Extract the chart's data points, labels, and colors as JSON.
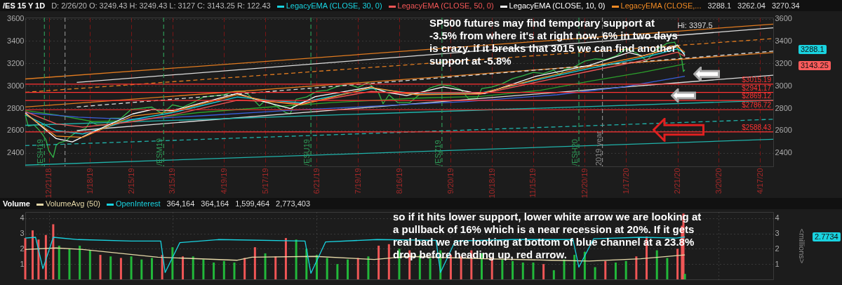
{
  "chart_data": [
    {
      "type": "line",
      "title": "/ES 15 Y 1D",
      "subtitle": "D: 2/26/20  O: 3249.43  H: 3249.43  L: 3127  C: 3143.25  R: 122.43",
      "legend": "top",
      "grid": true,
      "xlim": [
        "2018-12-05",
        "2020-04-26"
      ],
      "xticks": [
        {
          "value": "2018-12-21",
          "label": "12/21/18"
        },
        {
          "value": "2019-01-18",
          "label": "1/18/19"
        },
        {
          "value": "2019-02-15",
          "label": "2/15/19"
        },
        {
          "value": "2019-03-15",
          "label": "3/15/19"
        },
        {
          "value": "2019-04-19",
          "label": "4/19/19"
        },
        {
          "value": "2019-05-17",
          "label": "5/17/19"
        },
        {
          "value": "2019-06-21",
          "label": "6/21/19"
        },
        {
          "value": "2019-07-19",
          "label": "7/19/19"
        },
        {
          "value": "2019-08-16",
          "label": "8/16/19"
        },
        {
          "value": "2019-09-20",
          "label": "9/20/19"
        },
        {
          "value": "2019-10-18",
          "label": "10/18/19"
        },
        {
          "value": "2019-11-15",
          "label": "11/15/19"
        },
        {
          "value": "2019-12-20",
          "label": "12/20/19"
        },
        {
          "value": "2020-01-17",
          "label": "1/17/20"
        },
        {
          "value": "2020-02-21",
          "label": "2/21/20"
        },
        {
          "value": "2020-03-20",
          "label": "3/20/20"
        },
        {
          "value": "2020-04-17",
          "label": "4/17/20"
        }
      ],
      "ylim": [
        2280,
        3610
      ],
      "yticks": [
        2400,
        2600,
        2800,
        3000,
        3200,
        3400,
        3600
      ],
      "y2lim": [
        2280,
        3610
      ],
      "y2ticks": [
        2400,
        2600,
        2800,
        3000,
        3200,
        3400,
        3600
      ],
      "series": [
        {
          "color": "#33b84a",
          "x": [
            "2018-12-05",
            "2018-12-07",
            "2018-12-11",
            "2018-12-14",
            "2018-12-17",
            "2018-12-19",
            "2018-12-21",
            "2018-12-24",
            "2018-12-26",
            "2018-12-28",
            "2019-01-02",
            "2019-01-04",
            "2019-01-08",
            "2019-01-11",
            "2019-01-15",
            "2019-01-18",
            "2019-01-23",
            "2019-01-29",
            "2019-02-01",
            "2019-02-08",
            "2019-02-15",
            "2019-02-22",
            "2019-03-01",
            "2019-03-08",
            "2019-03-15",
            "2019-03-22",
            "2019-03-29",
            "2019-04-05",
            "2019-04-12",
            "2019-04-19",
            "2019-04-26",
            "2019-05-03",
            "2019-05-08",
            "2019-05-13",
            "2019-05-17",
            "2019-05-23",
            "2019-05-31",
            "2019-06-03",
            "2019-06-07",
            "2019-06-14",
            "2019-06-21",
            "2019-06-28",
            "2019-07-05",
            "2019-07-12",
            "2019-07-19",
            "2019-07-26",
            "2019-08-02",
            "2019-08-05",
            "2019-08-09",
            "2019-08-15",
            "2019-08-23",
            "2019-08-30",
            "2019-09-06",
            "2019-09-13",
            "2019-09-20",
            "2019-09-27",
            "2019-10-02",
            "2019-10-08",
            "2019-10-11",
            "2019-10-18",
            "2019-10-25",
            "2019-11-01",
            "2019-11-08",
            "2019-11-15",
            "2019-11-22",
            "2019-11-29",
            "2019-12-03",
            "2019-12-06",
            "2019-12-13",
            "2019-12-20",
            "2019-12-27",
            "2020-01-03",
            "2020-01-10",
            "2020-01-17",
            "2020-01-24",
            "2020-01-31",
            "2020-02-07",
            "2020-02-14",
            "2020-02-19",
            "2020-02-21",
            "2020-02-24",
            "2020-02-25",
            "2020-02-26"
          ],
          "values": [
            2740,
            2640,
            2650,
            2610,
            2560,
            2520,
            2420,
            2360,
            2470,
            2490,
            2510,
            2540,
            2580,
            2600,
            2620,
            2680,
            2650,
            2650,
            2710,
            2710,
            2790,
            2800,
            2810,
            2750,
            2830,
            2810,
            2850,
            2900,
            2910,
            2920,
            2950,
            2950,
            2890,
            2820,
            2870,
            2830,
            2760,
            2750,
            2880,
            2900,
            2950,
            2960,
            2995,
            3015,
            2985,
            3030,
            2935,
            2840,
            2920,
            2850,
            2850,
            2925,
            2980,
            3010,
            3000,
            2965,
            2885,
            2890,
            2975,
            2990,
            3020,
            3065,
            3090,
            3120,
            3110,
            3140,
            3095,
            3145,
            3170,
            3220,
            3240,
            3235,
            3265,
            3330,
            3295,
            3225,
            3325,
            3380,
            3390,
            3335,
            3225,
            3128,
            3143.25
          ]
        },
        {
          "color": "#e07b20",
          "x": [
            "2018-12-05",
            "2020-04-26"
          ],
          "values": [
            3061,
            3551
          ]
        },
        {
          "color": "#dddddd",
          "x": [
            "2019-01-09",
            "2020-04-26"
          ],
          "values": [
            3030,
            3518
          ]
        },
        {
          "color": "#e07b20",
          "line_style": "dashed",
          "x": [
            "2018-12-05",
            "2020-04-26"
          ],
          "values": [
            2942,
            3422
          ]
        },
        {
          "color": "#e07b20",
          "x": [
            "2018-12-05",
            "2020-04-26"
          ],
          "values": [
            2811,
            3297
          ]
        },
        {
          "color": "#dddddd",
          "line_style": "dashed",
          "x": [
            "2019-01-09",
            "2020-04-26"
          ],
          "values": [
            2811,
            3310
          ]
        },
        {
          "color": "#dddddd",
          "x": [
            "2019-01-09",
            "2020-04-26"
          ],
          "values": [
            2600,
            3095
          ]
        },
        {
          "color": "#20b2aa",
          "x": [
            "2018-12-05",
            "2020-04-26"
          ],
          "values": [
            2647,
            2870
          ]
        },
        {
          "color": "#20b2aa",
          "line_style": "dashed",
          "x": [
            "2018-12-05",
            "2020-04-26"
          ],
          "values": [
            2466,
            2701
          ]
        },
        {
          "color": "#20b2aa",
          "x": [
            "2018-12-05",
            "2020-04-26"
          ],
          "values": [
            2291,
            2522
          ]
        },
        {
          "color": "#2ca02c",
          "x": [
            "2018-12-05",
            "2018-12-26",
            "2019-01-20",
            "2019-02-16",
            "2019-04-01",
            "2019-05-20",
            "2019-07-01",
            "2019-08-28",
            "2019-10-10",
            "2019-11-20",
            "2019-12-23",
            "2020-01-28",
            "2020-02-26"
          ],
          "values": [
            2780,
            2740,
            2680,
            2690,
            2760,
            2810,
            2850,
            2890,
            2905,
            2960,
            3040,
            3120,
            3195
          ]
        },
        {
          "color": "#3a5fd9",
          "x": [
            "2018-12-05",
            "2019-01-10",
            "2019-02-16",
            "2019-04-01",
            "2019-06-01",
            "2019-08-01",
            "2019-10-01",
            "2019-12-01",
            "2020-01-15",
            "2020-02-26"
          ],
          "values": [
            2760,
            2720,
            2700,
            2730,
            2780,
            2820,
            2860,
            2920,
            2990,
            3085
          ]
        },
        {
          "name": "LegacyEMA (CLOSE, 30, 0)",
          "color": "#19d3e0",
          "x": [
            "2018-12-05",
            "2018-12-26",
            "2019-01-13",
            "2019-02-16",
            "2019-03-15",
            "2019-04-28",
            "2019-05-20",
            "2019-06-10",
            "2019-07-28",
            "2019-08-28",
            "2019-10-10",
            "2019-11-20",
            "2019-12-23",
            "2020-01-28",
            "2020-02-21",
            "2020-02-26"
          ],
          "values": [
            2740,
            2600,
            2570,
            2700,
            2760,
            2900,
            2870,
            2850,
            2975,
            2930,
            2935,
            3060,
            3155,
            3250,
            3330,
            3288.1
          ]
        },
        {
          "name": "LegacyEMA (CLOSE, 50, 0)",
          "color": "#f05656",
          "x": [
            "2018-12-05",
            "2018-12-26",
            "2019-01-13",
            "2019-02-16",
            "2019-03-15",
            "2019-04-28",
            "2019-05-20",
            "2019-06-10",
            "2019-07-28",
            "2019-08-28",
            "2019-10-10",
            "2019-11-20",
            "2019-12-23",
            "2020-01-28",
            "2020-02-21",
            "2020-02-26"
          ],
          "values": [
            2770,
            2660,
            2630,
            2680,
            2740,
            2870,
            2860,
            2840,
            2950,
            2925,
            2925,
            3040,
            3130,
            3225,
            3300,
            3262.04
          ]
        },
        {
          "name": "LegacyEMA (CLOSE, 10, 0)",
          "color": "#ffffff",
          "x": [
            "2018-12-05",
            "2018-12-26",
            "2019-01-06",
            "2019-01-18",
            "2019-02-16",
            "2019-03-01",
            "2019-03-15",
            "2019-04-28",
            "2019-05-17",
            "2019-06-03",
            "2019-06-20",
            "2019-07-28",
            "2019-08-07",
            "2019-08-21",
            "2019-09-15",
            "2019-10-04",
            "2019-10-13",
            "2019-11-17",
            "2019-12-23",
            "2020-01-19",
            "2020-01-28",
            "2020-02-06",
            "2020-02-21",
            "2020-02-26"
          ],
          "values": [
            2759,
            2528,
            2499,
            2576,
            2749,
            2788,
            2778,
            2932,
            2855,
            2797,
            2903,
            2990,
            2942,
            2913,
            2990,
            2942,
            2932,
            3086,
            3182,
            3297,
            3268,
            3297,
            3365,
            3270.34
          ]
        },
        {
          "name": "LegacyEMA (CLOSE,...",
          "color": "#f08a24",
          "x": [
            "2018-12-05",
            "2018-12-26",
            "2019-01-13",
            "2019-02-16",
            "2019-03-15",
            "2019-04-28",
            "2019-05-20",
            "2019-06-10",
            "2019-07-28",
            "2019-08-28",
            "2019-10-10",
            "2019-11-20",
            "2019-12-23",
            "2020-01-28",
            "2020-02-21",
            "2020-02-26"
          ],
          "values": [
            2750,
            2550,
            2540,
            2730,
            2770,
            2920,
            2860,
            2830,
            2985,
            2920,
            2930,
            3070,
            3170,
            3265,
            3350,
            3300
          ]
        }
      ],
      "ref_lines": [
        {
          "axis": "y",
          "value": 3015.19,
          "label": "$3015.19",
          "color": "#ff3333"
        },
        {
          "axis": "y",
          "value": 2941.17,
          "label": "$2941.17",
          "color": "#ff3333"
        },
        {
          "axis": "y",
          "value": 2869.12,
          "label": "$2869.12",
          "color": "#ff3333"
        },
        {
          "axis": "y",
          "value": 2786.72,
          "label": "$2786.72",
          "color": "#ff3333"
        },
        {
          "axis": "y",
          "value": 2588.43,
          "label": "$2588.43",
          "color": "#ff3333"
        },
        {
          "axis": "x",
          "value": "2018-12-18",
          "label": "/ESH19",
          "color": "#2e9a57",
          "line_style": "dashed"
        },
        {
          "axis": "x",
          "value": "2019-03-09",
          "label": "/ESM19",
          "color": "#2e9a57",
          "line_style": "dashed"
        },
        {
          "axis": "x",
          "value": "2019-06-17",
          "label": "/ESU19",
          "color": "#2e9a57",
          "line_style": "dashed"
        },
        {
          "axis": "x",
          "value": "2019-09-14",
          "label": "/ESZ19",
          "color": "#2e9a57",
          "line_style": "dashed"
        },
        {
          "axis": "x",
          "value": "2019-12-16",
          "label": "/ESH20",
          "color": "#2e9a57",
          "line_style": "dashed"
        },
        {
          "axis": "x",
          "value": "2019-01-01",
          "color": "#888888",
          "line_style": "dashed"
        },
        {
          "axis": "x",
          "value": "2020-01-01",
          "label": "2019 year",
          "color": "#888888",
          "line_style": "dashed"
        }
      ],
      "annotations": [
        "SP500 futures may find temporary support at -3.5% from where it's at right now.  6% in two days is crazy.  if it breaks that 3015 we can find another support at -5.8%",
        "so if it hits lower support, lower white arrow we are looking at a pullback of 16% which is a near recession at 20%.  If it gets real bad we are looking at bottom of blue channel at a 23.8% drop before heading up, red arrow.",
        "3288.1",
        "3262.04",
        "3270.34",
        "3288.1",
        "3143.25",
        {
          "text": "Hi: 3397.5",
          "x": "2020-02-19",
          "y": 3397.5
        }
      ]
    },
    {
      "type": "bar",
      "title": "Volume",
      "legend": "top",
      "grid": true,
      "tick_labels": "y",
      "xlim": [
        "2018-12-05",
        "2020-04-26"
      ],
      "xticks": [
        {
          "value": "2018-12-21",
          "label": null
        },
        {
          "value": "2019-03-15",
          "label": null
        },
        {
          "value": "2019-06-21",
          "label": null
        },
        {
          "value": "2019-09-20",
          "label": null
        },
        {
          "value": "2019-12-20",
          "label": null
        },
        {
          "value": "2020-03-20",
          "label": null
        }
      ],
      "ylim": [
        0,
        4.4
      ],
      "yticks": [
        1,
        2,
        3,
        4
      ],
      "y2lim": [
        0,
        4.4
      ],
      "y2ticks": [
        1,
        2,
        3,
        4
      ],
      "y2label": "<millions>",
      "series": [
        {
          "x": [
            "2018-12-05",
            "2018-12-10",
            "2018-12-14",
            "2018-12-19",
            "2018-12-24",
            "2018-12-28",
            "2019-01-04",
            "2019-01-11",
            "2019-01-18",
            "2019-01-25",
            "2019-02-01",
            "2019-02-08",
            "2019-02-15",
            "2019-02-22",
            "2019-03-01",
            "2019-03-08",
            "2019-03-15",
            "2019-03-22",
            "2019-03-29",
            "2019-04-05",
            "2019-04-12",
            "2019-04-19",
            "2019-04-26",
            "2019-05-03",
            "2019-05-10",
            "2019-05-17",
            "2019-05-24",
            "2019-05-31",
            "2019-06-07",
            "2019-06-14",
            "2019-06-21",
            "2019-06-28",
            "2019-07-05",
            "2019-07-12",
            "2019-07-19",
            "2019-07-26",
            "2019-08-02",
            "2019-08-09",
            "2019-08-16",
            "2019-08-23",
            "2019-08-30",
            "2019-09-06",
            "2019-09-13",
            "2019-09-20",
            "2019-09-27",
            "2019-10-04",
            "2019-10-11",
            "2019-10-18",
            "2019-10-25",
            "2019-11-01",
            "2019-11-08",
            "2019-11-15",
            "2019-11-22",
            "2019-11-29",
            "2019-12-06",
            "2019-12-13",
            "2019-12-20",
            "2019-12-27",
            "2020-01-03",
            "2020-01-10",
            "2020-01-17",
            "2020-01-24",
            "2020-01-31",
            "2020-02-07",
            "2020-02-14",
            "2020-02-21",
            "2020-02-24",
            "2020-02-25",
            "2020-02-26"
          ],
          "values": [
            2.7,
            3.2,
            2.6,
            2.9,
            3.6,
            2.2,
            2.0,
            2.2,
            1.9,
            1.6,
            1.5,
            1.4,
            1.5,
            1.3,
            1.4,
            1.6,
            2.1,
            1.5,
            1.5,
            1.3,
            1.1,
            1.2,
            1.1,
            1.4,
            2.1,
            1.7,
            1.5,
            2.7,
            2.6,
            2.0,
            1.6,
            1.4,
            1.0,
            1.3,
            1.4,
            1.5,
            2.2,
            2.3,
            2.0,
            1.9,
            1.6,
            1.4,
            1.9,
            1.6,
            1.5,
            1.9,
            1.7,
            1.4,
            1.3,
            1.2,
            1.1,
            1.1,
            1.0,
            0.6,
            1.3,
            1.6,
            1.8,
            0.8,
            1.2,
            1.1,
            1.2,
            1.5,
            2.8,
            1.9,
            1.4,
            2.0,
            3.5,
            4.3,
            0.36
          ],
          "colors": [
            "#f05656",
            "#f05656",
            "#f05656",
            "#f05656",
            "#f05656",
            "#22b83a",
            "#22b83a",
            "#22b83a",
            "#22b83a",
            "#f05656",
            "#22b83a",
            "#f05656",
            "#22b83a",
            "#22b83a",
            "#22b83a",
            "#f05656",
            "#22b83a",
            "#f05656",
            "#22b83a",
            "#22b83a",
            "#22b83a",
            "#22b83a",
            "#22b83a",
            "#f05656",
            "#f05656",
            "#22b83a",
            "#f05656",
            "#f05656",
            "#22b83a",
            "#22b83a",
            "#22b83a",
            "#22b83a",
            "#22b83a",
            "#22b83a",
            "#f05656",
            "#22b83a",
            "#f05656",
            "#f05656",
            "#22b83a",
            "#f05656",
            "#22b83a",
            "#22b83a",
            "#22b83a",
            "#f05656",
            "#f05656",
            "#f05656",
            "#22b83a",
            "#f05656",
            "#22b83a",
            "#22b83a",
            "#22b83a",
            "#22b83a",
            "#f05656",
            "#22b83a",
            "#22b83a",
            "#22b83a",
            "#22b83a",
            "#22b83a",
            "#f05656",
            "#22b83a",
            "#22b83a",
            "#f05656",
            "#f05656",
            "#22b83a",
            "#22b83a",
            "#f05656",
            "#f05656",
            "#f05656",
            "#22b83a"
          ]
        },
        {
          "name": "VolumeAvg (50)",
          "type": "line",
          "color": "#e6d9a8",
          "x": [
            "2018-12-05",
            "2018-12-26",
            "2019-01-13",
            "2019-03-05",
            "2019-04-28",
            "2019-05-08",
            "2019-06-20",
            "2019-07-30",
            "2019-08-22",
            "2019-10-13",
            "2019-11-27",
            "2019-12-23",
            "2020-01-27",
            "2020-02-26"
          ],
          "values": [
            1.95,
            2.05,
            1.95,
            1.45,
            1.25,
            1.45,
            1.5,
            1.3,
            1.5,
            1.35,
            1.25,
            1.2,
            1.35,
            1.6
          ]
        },
        {
          "name": "OpenInterest",
          "type": "line",
          "color": "#19d3e0",
          "x": [
            "2018-12-05",
            "2018-12-12",
            "2018-12-17",
            "2018-12-24",
            "2019-01-10",
            "2019-02-15",
            "2019-03-07",
            "2019-03-10",
            "2019-03-20",
            "2019-04-15",
            "2019-06-13",
            "2019-06-17",
            "2019-06-27",
            "2019-08-01",
            "2019-09-10",
            "2019-09-13",
            "2019-09-23",
            "2019-11-01",
            "2019-12-12",
            "2019-12-16",
            "2019-12-26",
            "2020-01-27",
            "2020-02-20",
            "2020-02-26"
          ],
          "values": [
            2.7,
            2.75,
            0.7,
            2.75,
            2.6,
            2.5,
            2.5,
            0.45,
            2.4,
            2.6,
            2.5,
            0.4,
            2.45,
            2.6,
            2.55,
            0.45,
            2.5,
            2.6,
            2.6,
            0.8,
            2.65,
            2.75,
            2.7,
            2.7734
          ]
        }
      ],
      "annotations": [
        "364,164",
        "364,164",
        "1,599,464",
        "2,773,403",
        "2.7734"
      ]
    }
  ]
}
